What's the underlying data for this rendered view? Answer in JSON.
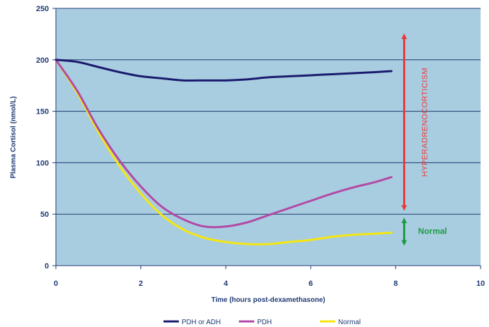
{
  "chart_data": {
    "type": "line",
    "title": "",
    "xlabel": "Time (hours post-dexamethasone)",
    "ylabel": "Plasma Cortisol (nmol/L)",
    "xlim": [
      0,
      10
    ],
    "ylim": [
      0,
      250
    ],
    "xticks": [
      "0",
      "2",
      "4",
      "6",
      "8",
      "10"
    ],
    "yticks": [
      "0",
      "50",
      "100",
      "150",
      "200",
      "250"
    ],
    "grid": "horizontal",
    "background_color": "#a9cde0",
    "series": [
      {
        "name": "PDH or ADH",
        "color": "#1a1a6e",
        "x": [
          0,
          0.5,
          1,
          1.5,
          2,
          2.5,
          3,
          3.5,
          4,
          4.5,
          5,
          5.5,
          6,
          6.5,
          7,
          7.5,
          7.9
        ],
        "y": [
          200,
          198,
          193,
          188,
          184,
          182,
          180,
          180,
          180,
          181,
          183,
          184,
          185,
          186,
          187,
          188,
          189
        ]
      },
      {
        "name": "PDH",
        "color": "#b24aa6",
        "x": [
          0,
          0.5,
          1,
          1.5,
          2,
          2.5,
          3,
          3.5,
          4,
          4.5,
          5,
          5.5,
          6,
          6.5,
          7,
          7.5,
          7.9
        ],
        "y": [
          200,
          170,
          133,
          102,
          77,
          57,
          45,
          38,
          38,
          42,
          49,
          56,
          63,
          70,
          76,
          81,
          86
        ]
      },
      {
        "name": "Normal",
        "color": "#f5e60f",
        "x": [
          0,
          0.5,
          1,
          1.5,
          2,
          2.5,
          3,
          3.5,
          4,
          4.5,
          5,
          5.5,
          6,
          6.5,
          7,
          7.5,
          7.9
        ],
        "y": [
          200,
          168,
          130,
          97,
          70,
          49,
          35,
          27,
          23,
          21,
          21,
          23,
          25,
          28,
          30,
          31,
          32
        ]
      }
    ],
    "annotations": [
      {
        "text": "HYPERADRENOCORTICISM",
        "color": "#e83a3a",
        "y_from": 52,
        "y_to": 227,
        "x": 8.2,
        "arrow": "double"
      },
      {
        "text": "Normal",
        "color": "#1e9a46",
        "y_from": 18,
        "y_to": 48,
        "x": 8.2,
        "arrow": "double"
      }
    ],
    "legend_position": "bottom-center"
  }
}
